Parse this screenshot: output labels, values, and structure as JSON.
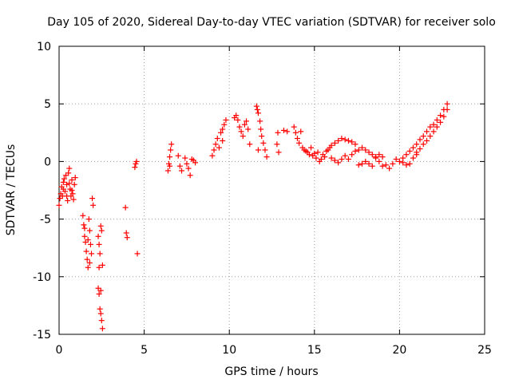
{
  "chart_data": {
    "type": "scatter",
    "title": "Day 105 of 2020, Sidereal Day-to-day VTEC variation (SDTVAR) for receiver solo",
    "xlabel": "GPS time / hours",
    "ylabel": "SDTVAR / TECUs",
    "xlim": [
      0,
      25
    ],
    "ylim": [
      -15,
      10
    ],
    "grid": true,
    "marker": "+",
    "series_color": "#ff0000",
    "x_ticks": [
      {
        "value": 0,
        "label": "0"
      },
      {
        "value": 5,
        "label": "5"
      },
      {
        "value": 10,
        "label": "10"
      },
      {
        "value": 15,
        "label": "15"
      },
      {
        "value": 20,
        "label": "20"
      },
      {
        "value": 25,
        "label": "25"
      }
    ],
    "y_ticks": [
      {
        "value": -15,
        "label": "-15"
      },
      {
        "value": -10,
        "label": "-10"
      },
      {
        "value": -5,
        "label": "-5"
      },
      {
        "value": 0,
        "label": "0"
      },
      {
        "value": 5,
        "label": "5"
      },
      {
        "value": 10,
        "label": "10"
      }
    ],
    "series": [
      {
        "name": "SDTVAR",
        "points": [
          [
            0.0,
            -3.8
          ],
          [
            0.05,
            -3.2
          ],
          [
            0.1,
            -2.8
          ],
          [
            0.15,
            -2.2
          ],
          [
            0.2,
            -3.0
          ],
          [
            0.25,
            -1.8
          ],
          [
            0.3,
            -1.5
          ],
          [
            0.35,
            -2.6
          ],
          [
            0.4,
            -1.2
          ],
          [
            0.45,
            -2.0
          ],
          [
            0.5,
            -3.4
          ],
          [
            0.55,
            -1.0
          ],
          [
            0.6,
            -0.6
          ],
          [
            0.65,
            -2.4
          ],
          [
            0.7,
            -3.0
          ],
          [
            0.75,
            -1.6
          ],
          [
            0.8,
            -2.8
          ],
          [
            0.85,
            -3.3
          ],
          [
            0.9,
            -2.0
          ],
          [
            0.95,
            -1.4
          ],
          [
            0.25,
            -2.4
          ],
          [
            0.45,
            -3.0
          ],
          [
            0.6,
            -1.9
          ],
          [
            0.75,
            -2.5
          ],
          [
            1.4,
            -4.7
          ],
          [
            1.45,
            -5.5
          ],
          [
            1.5,
            -6.5
          ],
          [
            1.55,
            -7.0
          ],
          [
            1.6,
            -7.8
          ],
          [
            1.65,
            -8.5
          ],
          [
            1.7,
            -9.2
          ],
          [
            1.75,
            -5.0
          ],
          [
            1.8,
            -6.0
          ],
          [
            1.85,
            -7.2
          ],
          [
            1.9,
            -8.0
          ],
          [
            1.95,
            -3.2
          ],
          [
            2.0,
            -3.8
          ],
          [
            1.7,
            -6.8
          ],
          [
            1.8,
            -8.8
          ],
          [
            1.5,
            -5.8
          ],
          [
            2.3,
            -6.5
          ],
          [
            2.35,
            -7.2
          ],
          [
            2.4,
            -8.0
          ],
          [
            2.45,
            -5.6
          ],
          [
            2.5,
            -6.0
          ],
          [
            2.55,
            -9.0
          ],
          [
            2.35,
            -9.2
          ],
          [
            2.3,
            -11.0
          ],
          [
            2.35,
            -11.5
          ],
          [
            2.4,
            -12.8
          ],
          [
            2.45,
            -13.2
          ],
          [
            2.5,
            -13.8
          ],
          [
            2.55,
            -14.5
          ],
          [
            2.45,
            -11.2
          ],
          [
            3.9,
            -4.0
          ],
          [
            3.95,
            -6.2
          ],
          [
            4.0,
            -6.6
          ],
          [
            4.45,
            -0.5
          ],
          [
            4.5,
            -0.2
          ],
          [
            4.55,
            0.0
          ],
          [
            4.6,
            -8.0
          ],
          [
            6.4,
            -0.8
          ],
          [
            6.45,
            -0.2
          ],
          [
            6.5,
            0.4
          ],
          [
            6.55,
            1.0
          ],
          [
            6.6,
            1.5
          ],
          [
            6.5,
            -0.4
          ],
          [
            7.0,
            0.5
          ],
          [
            7.1,
            -0.4
          ],
          [
            7.2,
            -0.8
          ],
          [
            7.4,
            0.3
          ],
          [
            7.5,
            -0.2
          ],
          [
            7.6,
            -0.6
          ],
          [
            7.7,
            -1.2
          ],
          [
            7.8,
            0.2
          ],
          [
            7.9,
            0.1
          ],
          [
            8.0,
            -0.1
          ],
          [
            9.0,
            0.5
          ],
          [
            9.1,
            1.0
          ],
          [
            9.2,
            1.5
          ],
          [
            9.3,
            2.0
          ],
          [
            9.4,
            1.2
          ],
          [
            9.5,
            2.5
          ],
          [
            9.6,
            2.8
          ],
          [
            9.7,
            3.2
          ],
          [
            9.8,
            3.6
          ],
          [
            9.6,
            1.8
          ],
          [
            10.3,
            3.8
          ],
          [
            10.4,
            4.0
          ],
          [
            10.5,
            3.6
          ],
          [
            10.6,
            3.0
          ],
          [
            10.7,
            2.6
          ],
          [
            10.8,
            2.2
          ],
          [
            10.9,
            3.2
          ],
          [
            11.0,
            3.5
          ],
          [
            11.1,
            2.8
          ],
          [
            11.2,
            1.5
          ],
          [
            11.6,
            4.8
          ],
          [
            11.65,
            4.5
          ],
          [
            11.7,
            4.2
          ],
          [
            11.8,
            3.5
          ],
          [
            11.85,
            2.8
          ],
          [
            11.9,
            2.2
          ],
          [
            12.0,
            1.6
          ],
          [
            12.1,
            1.0
          ],
          [
            12.2,
            0.4
          ],
          [
            11.7,
            1.0
          ],
          [
            12.8,
            1.5
          ],
          [
            12.85,
            2.5
          ],
          [
            12.9,
            0.8
          ],
          [
            13.2,
            2.7
          ],
          [
            13.4,
            2.6
          ],
          [
            13.8,
            3.0
          ],
          [
            13.9,
            2.5
          ],
          [
            14.0,
            2.0
          ],
          [
            14.1,
            1.6
          ],
          [
            14.2,
            2.6
          ],
          [
            14.3,
            1.2
          ],
          [
            14.4,
            1.0
          ],
          [
            14.5,
            0.9
          ],
          [
            14.6,
            0.8
          ],
          [
            14.7,
            0.6
          ],
          [
            14.8,
            1.2
          ],
          [
            14.9,
            0.5
          ],
          [
            15.0,
            0.7
          ],
          [
            15.1,
            0.3
          ],
          [
            15.2,
            0.8
          ],
          [
            15.3,
            0.0
          ],
          [
            15.4,
            0.2
          ],
          [
            15.5,
            0.6
          ],
          [
            15.6,
            0.4
          ],
          [
            15.7,
            0.9
          ],
          [
            15.8,
            1.0
          ],
          [
            15.9,
            1.2
          ],
          [
            16.0,
            1.4
          ],
          [
            16.2,
            1.6
          ],
          [
            16.4,
            1.8
          ],
          [
            16.6,
            2.0
          ],
          [
            16.8,
            1.9
          ],
          [
            17.0,
            1.8
          ],
          [
            17.2,
            1.7
          ],
          [
            17.4,
            1.5
          ],
          [
            16.0,
            0.3
          ],
          [
            16.2,
            0.1
          ],
          [
            16.4,
            -0.1
          ],
          [
            16.6,
            0.2
          ],
          [
            16.8,
            0.5
          ],
          [
            17.0,
            0.2
          ],
          [
            17.2,
            0.6
          ],
          [
            17.4,
            0.9
          ],
          [
            17.6,
            1.0
          ],
          [
            17.8,
            1.2
          ],
          [
            18.0,
            1.0
          ],
          [
            18.2,
            0.8
          ],
          [
            18.4,
            0.6
          ],
          [
            18.6,
            0.4
          ],
          [
            18.8,
            0.0
          ],
          [
            19.0,
            -0.4
          ],
          [
            19.2,
            -0.3
          ],
          [
            19.4,
            -0.6
          ],
          [
            19.6,
            -0.2
          ],
          [
            19.8,
            0.2
          ],
          [
            17.6,
            -0.3
          ],
          [
            17.8,
            -0.2
          ],
          [
            18.0,
            0.0
          ],
          [
            18.2,
            -0.2
          ],
          [
            18.4,
            -0.4
          ],
          [
            18.6,
            0.3
          ],
          [
            18.8,
            0.6
          ],
          [
            19.0,
            0.4
          ],
          [
            20.0,
            0.0
          ],
          [
            20.2,
            0.3
          ],
          [
            20.4,
            0.6
          ],
          [
            20.6,
            0.9
          ],
          [
            20.8,
            1.2
          ],
          [
            21.0,
            1.5
          ],
          [
            21.2,
            1.9
          ],
          [
            21.4,
            2.2
          ],
          [
            21.6,
            2.6
          ],
          [
            21.8,
            3.0
          ],
          [
            21.0,
            0.8
          ],
          [
            21.2,
            1.1
          ],
          [
            21.4,
            1.5
          ],
          [
            21.6,
            1.8
          ],
          [
            21.8,
            2.2
          ],
          [
            22.0,
            3.2
          ],
          [
            22.2,
            3.6
          ],
          [
            22.4,
            4.0
          ],
          [
            22.6,
            4.5
          ],
          [
            22.8,
            5.0
          ],
          [
            22.0,
            2.6
          ],
          [
            22.2,
            3.0
          ],
          [
            22.4,
            3.4
          ],
          [
            22.6,
            3.9
          ],
          [
            22.8,
            4.5
          ],
          [
            20.6,
            -0.2
          ],
          [
            20.8,
            0.3
          ],
          [
            21.0,
            0.6
          ],
          [
            20.4,
            -0.3
          ],
          [
            20.2,
            -0.1
          ]
        ]
      }
    ]
  }
}
